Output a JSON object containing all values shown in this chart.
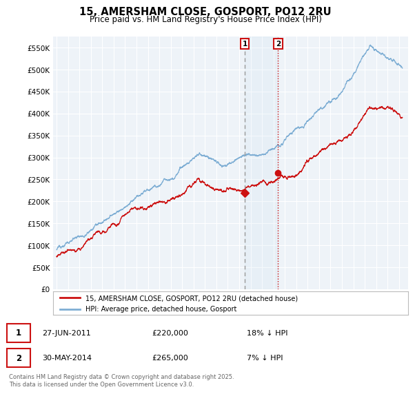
{
  "title": "15, AMERSHAM CLOSE, GOSPORT, PO12 2RU",
  "subtitle": "Price paid vs. HM Land Registry's House Price Index (HPI)",
  "yticks": [
    0,
    50000,
    100000,
    150000,
    200000,
    250000,
    300000,
    350000,
    400000,
    450000,
    500000,
    550000
  ],
  "ylim": [
    0,
    575000
  ],
  "xlim_start": 1994.7,
  "xlim_end": 2025.8,
  "background_color": "#ffffff",
  "plot_bg_color": "#eef3f8",
  "grid_color": "#ffffff",
  "hpi_color": "#7eaed4",
  "price_color": "#cc1111",
  "purchase_1": {
    "date_year": 2011.49,
    "price": 220000,
    "label": "1",
    "hpi_pct": "18% ↓ HPI",
    "date_str": "27-JUN-2011",
    "price_str": "£220,000"
  },
  "purchase_2": {
    "date_year": 2014.41,
    "price": 265000,
    "label": "2",
    "hpi_pct": "7% ↓ HPI",
    "date_str": "30-MAY-2014",
    "price_str": "£265,000"
  },
  "legend_house": "15, AMERSHAM CLOSE, GOSPORT, PO12 2RU (detached house)",
  "legend_hpi": "HPI: Average price, detached house, Gosport",
  "footnote": "Contains HM Land Registry data © Crown copyright and database right 2025.\nThis data is licensed under the Open Government Licence v3.0.",
  "purchase_box_color": "#cc1111",
  "vline1_color": "#999999",
  "vline1_style": "--",
  "vline2_color": "#cc1111",
  "vline2_style": ":"
}
